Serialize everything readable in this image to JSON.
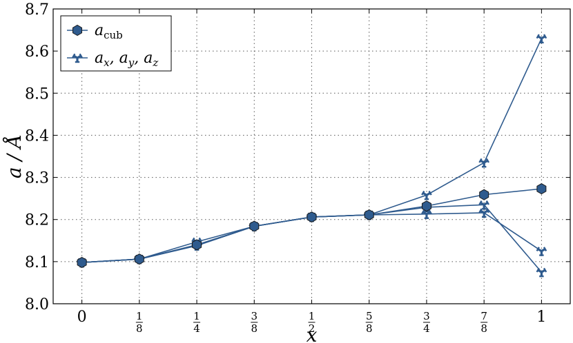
{
  "chart_data": {
    "type": "line",
    "xlabel": "x",
    "ylabel": "a / Å",
    "xlim": [
      -0.0625,
      1.0625
    ],
    "ylim": [
      8.0,
      8.7
    ],
    "x": [
      0,
      0.125,
      0.25,
      0.375,
      0.5,
      0.625,
      0.75,
      0.875,
      1.0
    ],
    "x_tick_labels": [
      {
        "whole": "0"
      },
      {
        "num": "1",
        "den": "8"
      },
      {
        "num": "1",
        "den": "4"
      },
      {
        "num": "3",
        "den": "8"
      },
      {
        "num": "1",
        "den": "2"
      },
      {
        "num": "5",
        "den": "8"
      },
      {
        "num": "3",
        "den": "4"
      },
      {
        "num": "7",
        "den": "8"
      },
      {
        "whole": "1"
      }
    ],
    "y_ticks": [
      "8.0",
      "8.1",
      "8.2",
      "8.3",
      "8.4",
      "8.5",
      "8.6",
      "8.7"
    ],
    "grid": true,
    "legend_position": "top-left",
    "series": [
      {
        "name": "a_cub",
        "marker": "hexagon",
        "color": "#2f5b8e",
        "values": [
          8.098,
          8.106,
          8.14,
          8.184,
          8.206,
          8.211,
          8.232,
          8.259,
          8.273
        ]
      },
      {
        "name": "a_x, a_y, a_z (1)",
        "marker": "tri",
        "color": "#2f5b8e",
        "values": [
          8.098,
          8.106,
          8.147,
          8.184,
          8.206,
          8.211,
          8.258,
          8.335,
          8.63
        ]
      },
      {
        "name": "a_x, a_y, a_z (2)",
        "marker": "tri",
        "color": "#2f5b8e",
        "values": [
          8.098,
          8.106,
          8.138,
          8.184,
          8.206,
          8.211,
          8.229,
          8.235,
          8.075
        ]
      },
      {
        "name": "a_x, a_y, a_z (3)",
        "marker": "tri",
        "color": "#2f5b8e",
        "values": [
          8.098,
          8.106,
          8.138,
          8.184,
          8.206,
          8.211,
          8.213,
          8.216,
          8.125
        ]
      }
    ],
    "legend": [
      {
        "marker": "hexagon",
        "main": "a",
        "sub": "cub"
      },
      {
        "marker": "tri",
        "parts": [
          {
            "main": "a",
            "sub": "x"
          },
          {
            "main": "a",
            "sub": "y"
          },
          {
            "main": "a",
            "sub": "z"
          }
        ]
      }
    ]
  }
}
